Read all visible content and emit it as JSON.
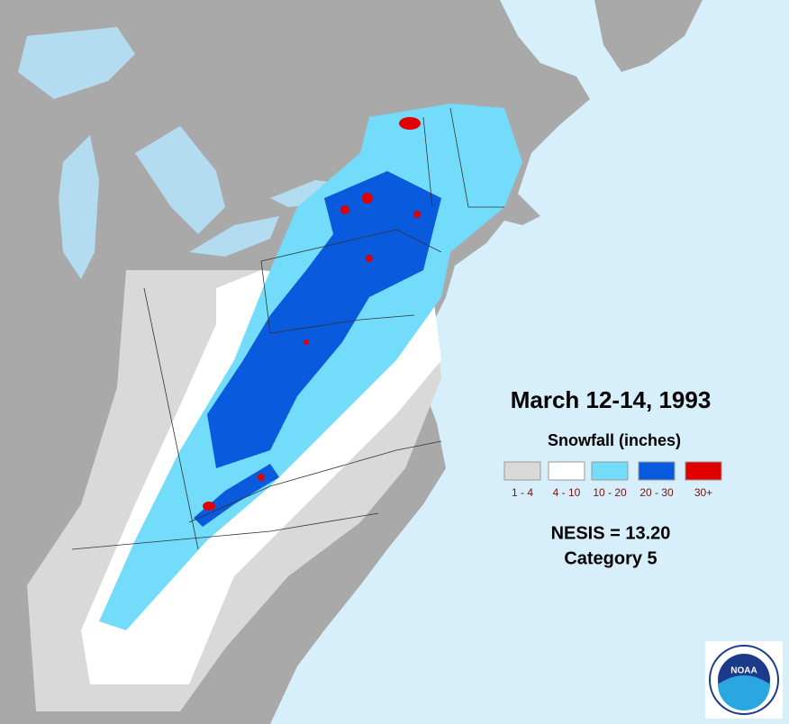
{
  "map": {
    "title": "March 12-14, 1993",
    "legend": {
      "title": "Snowfall (inches)",
      "items": [
        {
          "label": "1 - 4",
          "color": "#d9d9d9"
        },
        {
          "label": "4 - 10",
          "color": "#ffffff"
        },
        {
          "label": "10 - 20",
          "color": "#74dcfb"
        },
        {
          "label": "20 - 30",
          "color": "#0a5ade"
        },
        {
          "label": "30+",
          "color": "#e00000"
        }
      ]
    },
    "index": "NESIS = 13.20",
    "category": "Category 5"
  },
  "logo": {
    "text": "NOAA"
  }
}
